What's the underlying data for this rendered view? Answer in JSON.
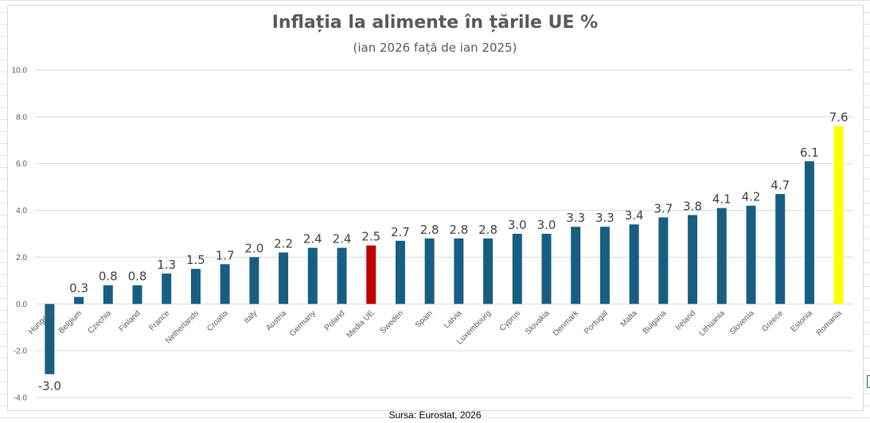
{
  "chart_data": {
    "type": "bar",
    "title": "Inflația la alimente în țările UE %",
    "subtitle": "(ian 2026 față de ian 2025)",
    "source": "Sursa: Eurostat, 2026",
    "xlabel": "",
    "ylabel": "",
    "ylim": [
      -4,
      10
    ],
    "yticks": [
      "10.0",
      "8.0",
      "6.0",
      "4.0",
      "2.0",
      "0.0",
      "-2.0",
      "-4.0"
    ],
    "ytick_values": [
      10,
      8,
      6,
      4,
      2,
      0,
      -2,
      -4
    ],
    "grid": true,
    "legend": "none",
    "categories": [
      "Hungary",
      "Belgium",
      "Czechia",
      "Finland",
      "France",
      "Netherlands",
      "Croatia",
      "Italy",
      "Austria",
      "Germany",
      "Poland",
      "Media UE",
      "Sweden",
      "Spain",
      "Latvia",
      "Luxembourg",
      "Cyprus",
      "Slovakia",
      "Denmark",
      "Portugal",
      "Malta",
      "Bulgaria",
      "Ireland",
      "Lithuania",
      "Slovenia",
      "Greece",
      "Estonia",
      "Romania"
    ],
    "values": [
      -3.0,
      0.3,
      0.8,
      0.8,
      1.3,
      1.5,
      1.7,
      2.0,
      2.2,
      2.4,
      2.4,
      2.5,
      2.7,
      2.8,
      2.8,
      2.8,
      3.0,
      3.0,
      3.3,
      3.3,
      3.4,
      3.7,
      3.8,
      4.1,
      4.2,
      4.7,
      6.1,
      7.6
    ],
    "data_labels": [
      "-3.0",
      "0.3",
      "0.8",
      "0.8",
      "1.3",
      "1.5",
      "1.7",
      "2.0",
      "2.2",
      "2.4",
      "2.4",
      "2.5",
      "2.7",
      "2.8",
      "2.8",
      "2.8",
      "3.0",
      "3.0",
      "3.3",
      "3.3",
      "3.4",
      "3.7",
      "3.8",
      "4.1",
      "4.2",
      "4.7",
      "6.1",
      "7.6"
    ],
    "colors": {
      "default": "#175e81",
      "highlight_average": "#c00000",
      "highlight_romania": "#ffff00",
      "grid": "#d9d9d9"
    },
    "highlights": {
      "Media UE": "#c00000",
      "Romania": "#ffff00"
    }
  }
}
